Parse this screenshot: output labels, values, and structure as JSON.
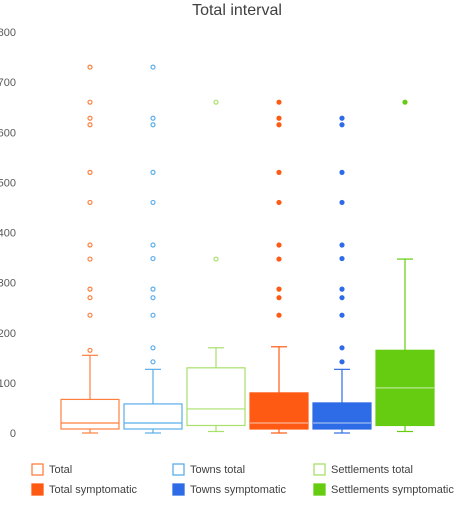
{
  "chart_data": {
    "type": "boxplot",
    "title": "Total interval",
    "xlabel": "",
    "ylabel": "",
    "ylim": [
      0,
      800
    ],
    "yticks": [
      0,
      100,
      200,
      300,
      400,
      500,
      600,
      700,
      800
    ],
    "grid": false,
    "legend_position": "bottom",
    "series": [
      {
        "name": "Total",
        "color": "#ff7f3f",
        "filled": false,
        "min": 0,
        "q1": 8,
        "median": 20,
        "q3": 67,
        "max": 155,
        "outliers": [
          165,
          235,
          270,
          287,
          347,
          375,
          460,
          520,
          615,
          628,
          660,
          730
        ]
      },
      {
        "name": "Towns total",
        "color": "#5aaeea",
        "filled": false,
        "min": 0,
        "q1": 8,
        "median": 20,
        "q3": 58,
        "max": 127,
        "outliers": [
          142,
          170,
          235,
          270,
          287,
          348,
          375,
          460,
          520,
          615,
          628,
          730
        ]
      },
      {
        "name": "Settlements total",
        "color": "#a8e06a",
        "filled": false,
        "min": 3,
        "q1": 15,
        "median": 48,
        "q3": 130,
        "max": 170,
        "outliers": [
          347,
          660
        ]
      },
      {
        "name": "Total symptomatic",
        "color": "#ff5a14",
        "filled": true,
        "min": 0,
        "q1": 8,
        "median": 20,
        "q3": 80,
        "max": 172,
        "outliers": [
          235,
          270,
          287,
          347,
          375,
          460,
          520,
          615,
          628,
          660
        ]
      },
      {
        "name": "Towns symptomatic",
        "color": "#2e6be6",
        "filled": true,
        "min": 0,
        "q1": 8,
        "median": 20,
        "q3": 60,
        "max": 127,
        "outliers": [
          142,
          170,
          235,
          270,
          287,
          348,
          375,
          460,
          520,
          615,
          628
        ]
      },
      {
        "name": "Settlements symptomatic",
        "color": "#66cc11",
        "filled": true,
        "min": 3,
        "q1": 15,
        "median": 90,
        "q3": 165,
        "max": 347,
        "outliers": [
          660
        ]
      }
    ]
  }
}
